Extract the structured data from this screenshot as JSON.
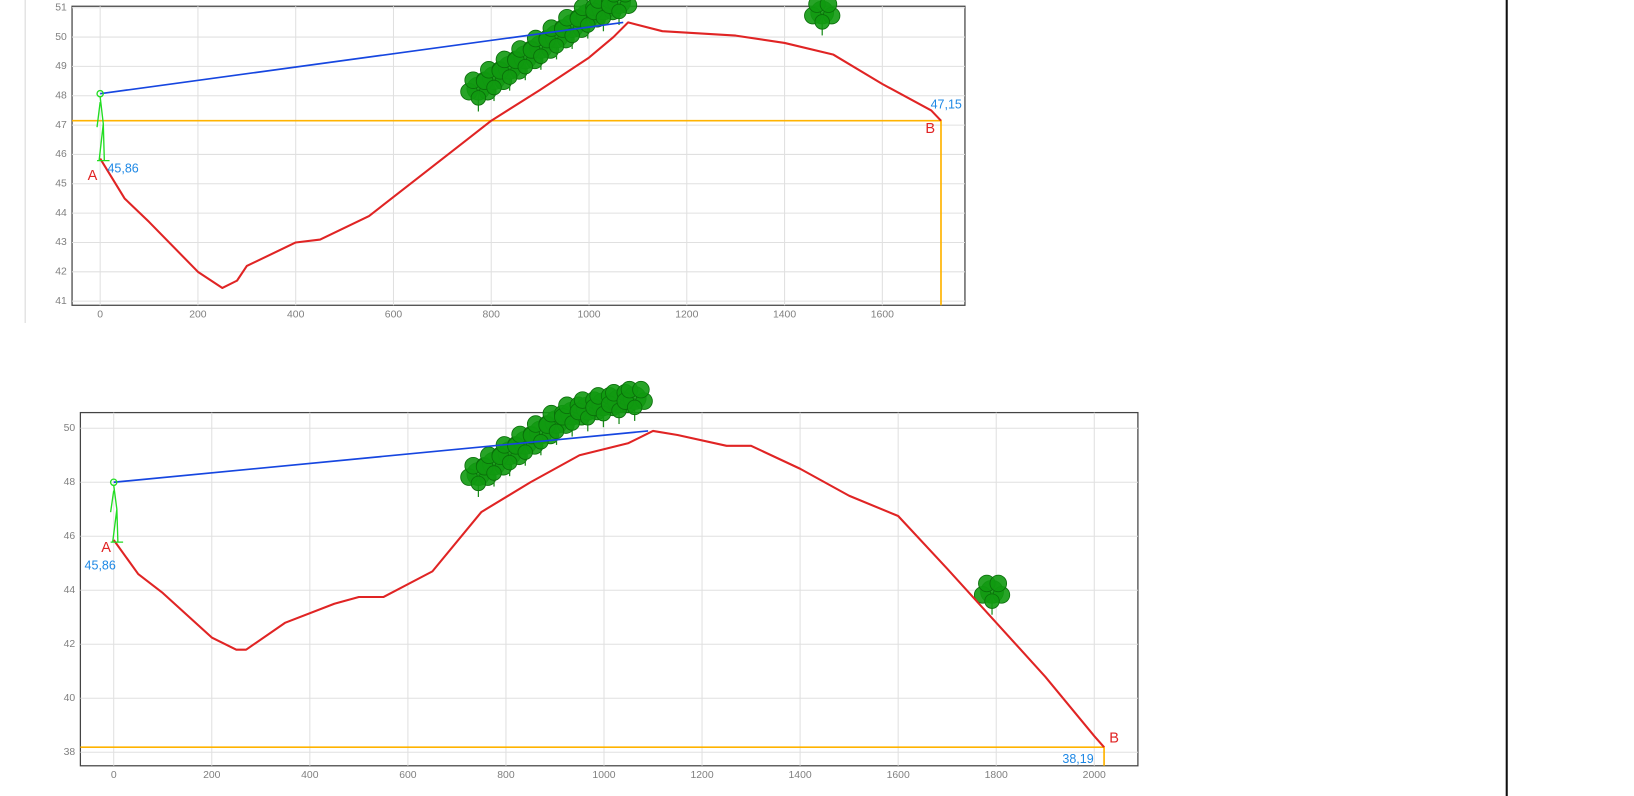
{
  "chart_data": [
    {
      "type": "line",
      "x": [
        0,
        50,
        100,
        200,
        250,
        280,
        300,
        400,
        450,
        550,
        650,
        750,
        800,
        900,
        1000,
        1050,
        1080,
        1150,
        1300,
        1400,
        1500,
        1600,
        1700,
        1720
      ],
      "values": [
        45.86,
        44.5,
        43.7,
        42.0,
        41.45,
        41.7,
        42.2,
        43.0,
        43.1,
        43.9,
        45.2,
        46.5,
        47.15,
        48.2,
        49.3,
        50.0,
        50.5,
        50.2,
        50.05,
        49.8,
        49.4,
        48.4,
        47.5,
        47.15
      ],
      "color": "#e02424",
      "sight_line": {
        "x": [
          0,
          1070
        ],
        "values": [
          48.07,
          50.5
        ],
        "color": "#1646e0"
      },
      "level_color": "#ffb300",
      "start_label": "A",
      "start_value_label": "45,86",
      "end_label": "B",
      "end_value_label": "47,15",
      "xlim": [
        -57.5,
        1769
      ],
      "ylim": [
        40.86,
        51.05
      ],
      "xticks": [
        0,
        200,
        400,
        600,
        800,
        1000,
        1200,
        1400,
        1600
      ],
      "yticks": [
        41,
        42,
        43,
        44,
        45,
        46,
        47,
        48,
        49,
        50,
        51
      ],
      "grid": true
    },
    {
      "type": "line",
      "x": [
        0,
        50,
        100,
        200,
        250,
        270,
        350,
        450,
        500,
        550,
        650,
        750,
        850,
        950,
        1050,
        1100,
        1150,
        1250,
        1300,
        1400,
        1500,
        1600,
        1700,
        1800,
        1900,
        2000,
        2020
      ],
      "values": [
        45.86,
        44.6,
        43.9,
        42.25,
        41.8,
        41.8,
        42.8,
        43.5,
        43.75,
        43.75,
        44.7,
        46.9,
        48.0,
        49.0,
        49.45,
        49.9,
        49.75,
        49.35,
        49.35,
        48.5,
        47.5,
        46.75,
        44.8,
        42.8,
        40.8,
        38.6,
        38.19
      ],
      "color": "#e02424",
      "sight_line": {
        "x": [
          0,
          1090
        ],
        "values": [
          48.0,
          49.9
        ],
        "color": "#1646e0"
      },
      "level_color": "#ffb300",
      "start_label": "A",
      "start_value_label": "45,86",
      "end_label": "B",
      "end_value_label": "38,19",
      "xlim": [
        -68,
        2089
      ],
      "ylim": [
        37.5,
        50.58
      ],
      "xticks": [
        0,
        200,
        400,
        600,
        800,
        1000,
        1200,
        1400,
        1600,
        1800,
        2000
      ],
      "yticks": [
        38,
        40,
        42,
        44,
        46,
        48,
        50
      ],
      "grid": true
    }
  ]
}
